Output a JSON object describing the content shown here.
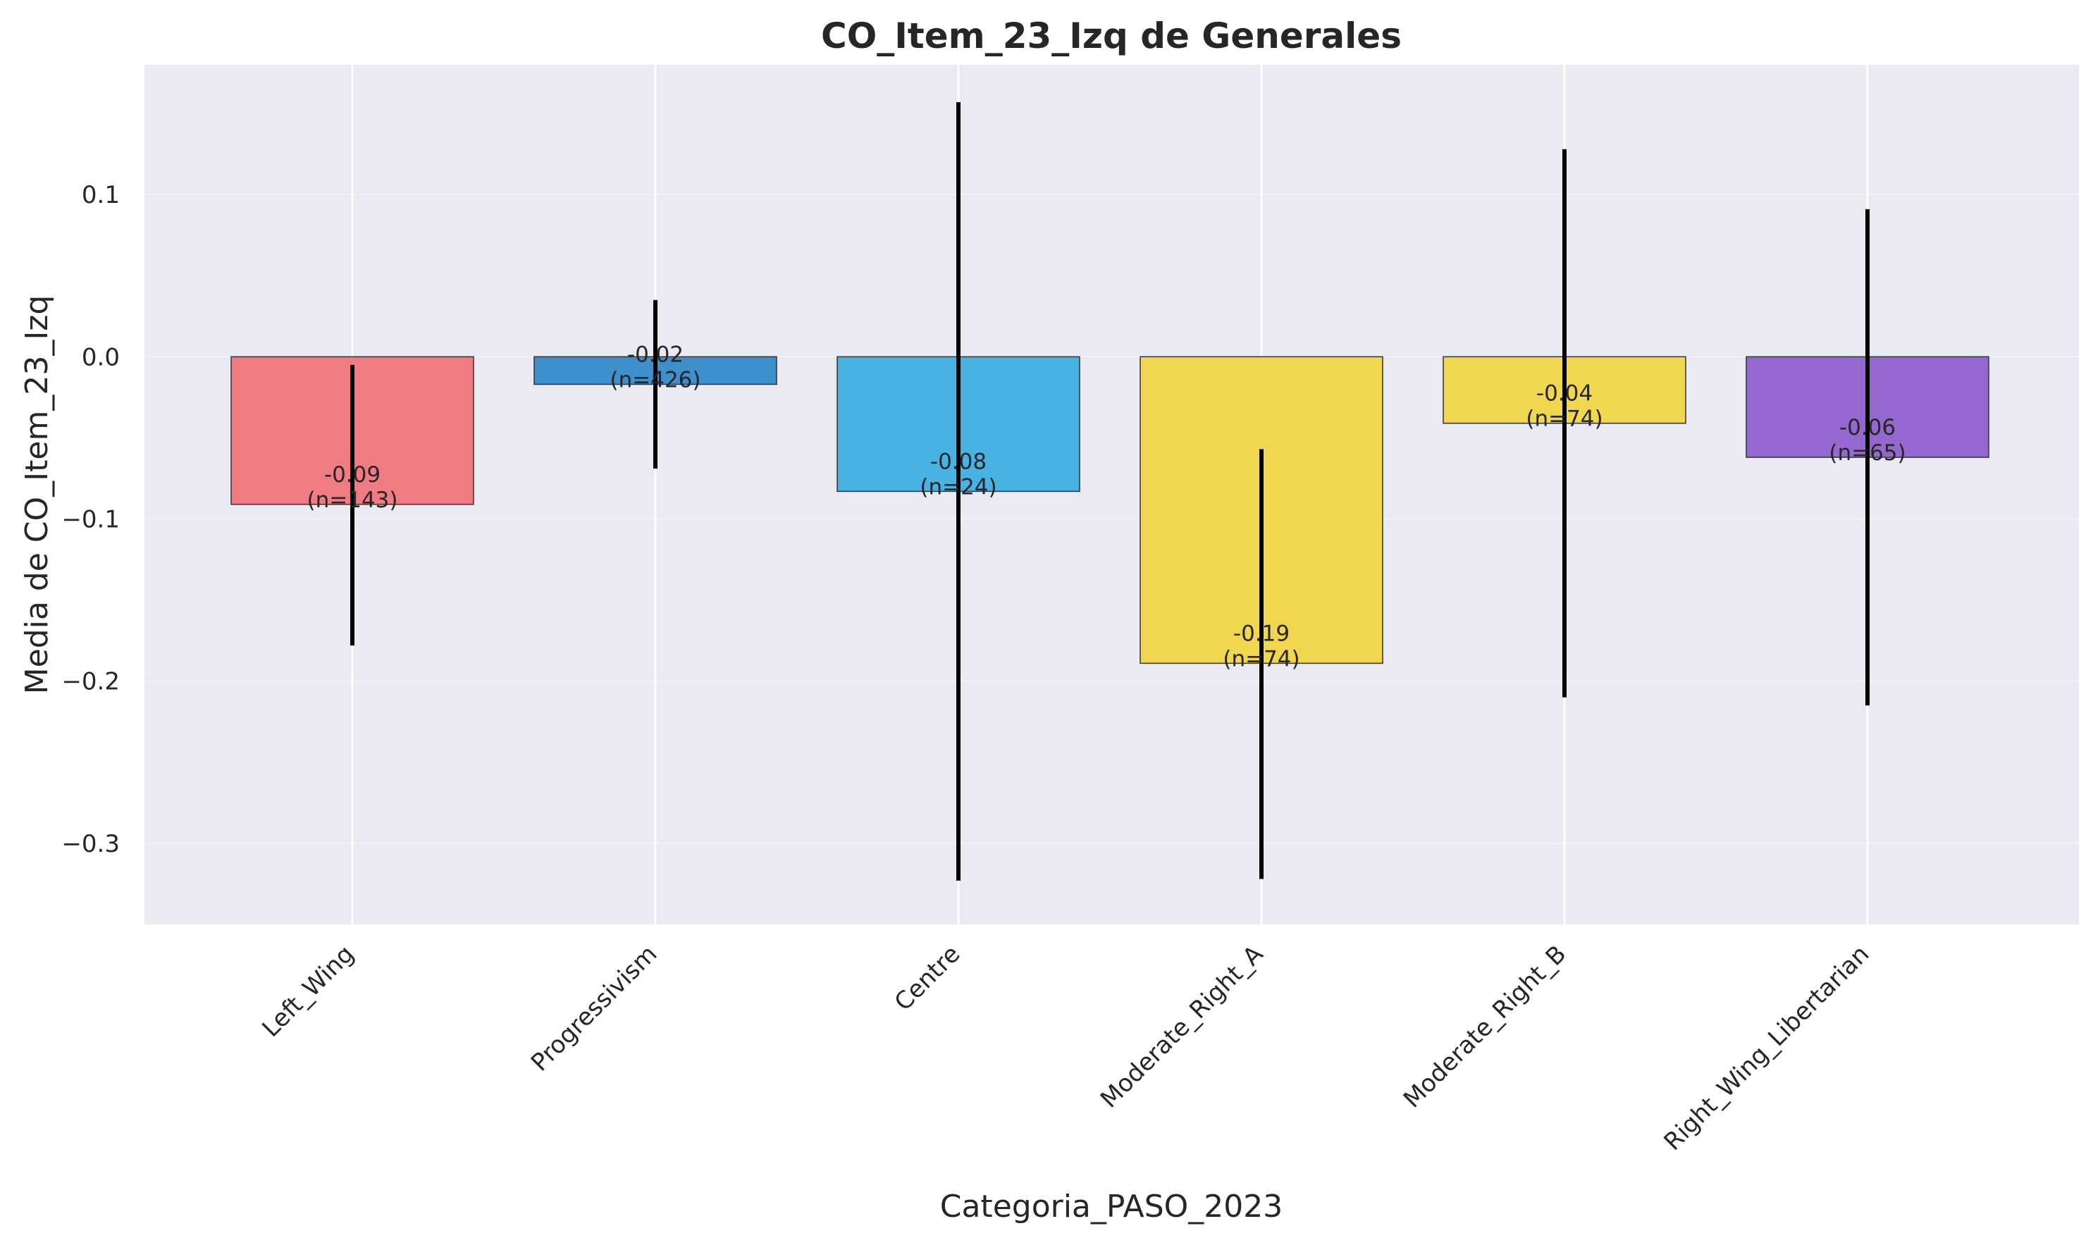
{
  "chart_data": {
    "type": "bar",
    "title": "CO_Item_23_Izq de Generales",
    "xlabel": "Categoria_PASO_2023",
    "ylabel": "Media de CO_Item_23_Izq",
    "ylim": [
      -0.35,
      0.18
    ],
    "yticks": [
      -0.3,
      -0.2,
      -0.1,
      0.0,
      0.1
    ],
    "ytick_labels": [
      "−0.3",
      "−0.2",
      "−0.1",
      "0.0",
      "0.1"
    ],
    "grid": true,
    "categories": [
      "Left_Wing",
      "Progressivism",
      "Centre",
      "Moderate_Right_A",
      "Moderate_Right_B",
      "Right_Wing_Libertarian"
    ],
    "values": [
      -0.091,
      -0.017,
      -0.083,
      -0.189,
      -0.041,
      -0.062
    ],
    "error_low": [
      -0.178,
      -0.069,
      -0.323,
      -0.322,
      -0.21,
      -0.215
    ],
    "error_high": [
      -0.005,
      0.035,
      0.157,
      -0.057,
      0.128,
      0.091
    ],
    "colors": [
      "#f07b82",
      "#3d90cc",
      "#48b3e3",
      "#f1d650",
      "#f1d650",
      "#9568cf"
    ],
    "value_labels": [
      "-0.09",
      "-0.02",
      "-0.08",
      "-0.19",
      "-0.04",
      "-0.06"
    ],
    "n_labels": [
      "(n=143)",
      "(n=426)",
      "(n=24)",
      "(n=74)",
      "(n=74)",
      "(n=65)"
    ]
  }
}
